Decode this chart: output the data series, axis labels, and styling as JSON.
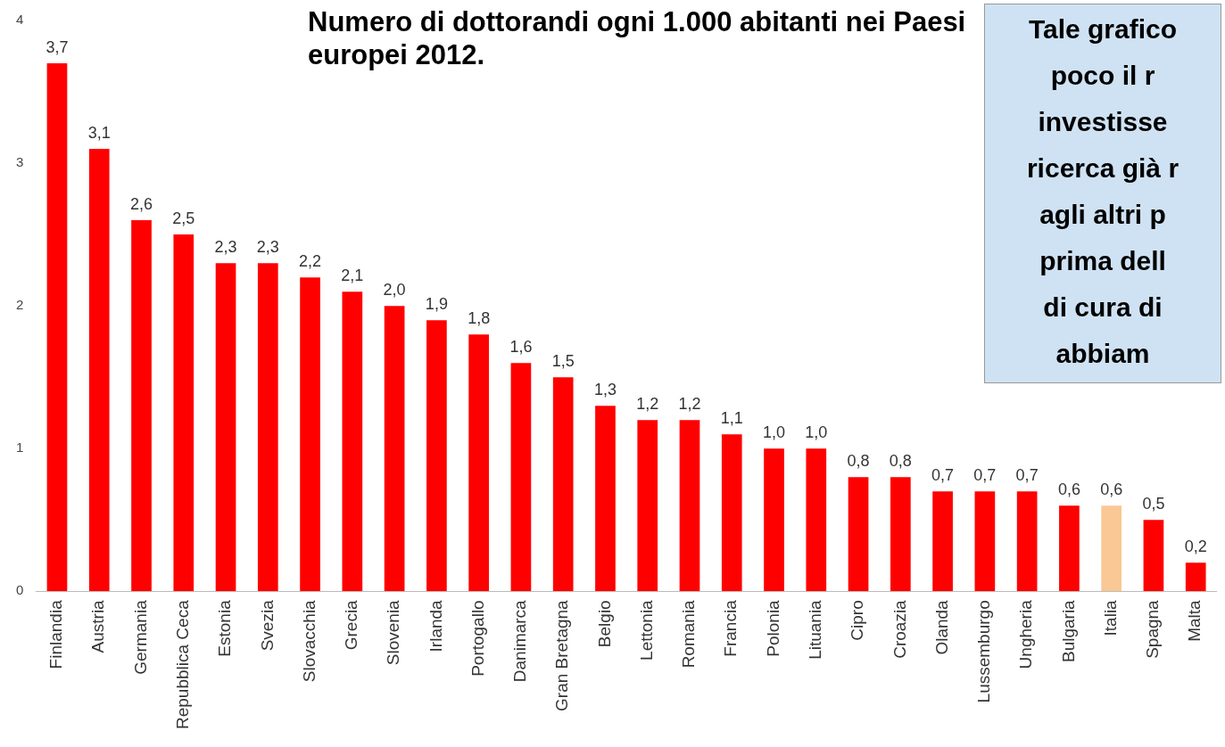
{
  "chart_data": {
    "type": "bar",
    "title": "Numero di dottorandi ogni 1.000 abitanti nei Paesi europei 2012.",
    "categories": [
      "Finlandia",
      "Austria",
      "Germania",
      "Repubblica Ceca",
      "Estonia",
      "Svezia",
      "Slovacchia",
      "Grecia",
      "Slovenia",
      "Irlanda",
      "Portogallo",
      "Danimarca",
      "Gran Bretagna",
      "Belgio",
      "Lettonia",
      "Romania",
      "Francia",
      "Polonia",
      "Lituania",
      "Cipro",
      "Croazia",
      "Olanda",
      "Lussemburgo",
      "Ungheria",
      "Bulgaria",
      "Italia",
      "Spagna",
      "Malta"
    ],
    "values": [
      3.7,
      3.1,
      2.6,
      2.5,
      2.3,
      2.3,
      2.2,
      2.1,
      2.0,
      1.9,
      1.8,
      1.6,
      1.5,
      1.3,
      1.2,
      1.2,
      1.1,
      1.0,
      1.0,
      0.8,
      0.8,
      0.7,
      0.7,
      0.7,
      0.6,
      0.6,
      0.5,
      0.2
    ],
    "value_labels": [
      "3,7",
      "3,1",
      "2,6",
      "2,5",
      "2,3",
      "2,3",
      "2,2",
      "2,1",
      "2,0",
      "1,9",
      "1,8",
      "1,6",
      "1,5",
      "1,3",
      "1,2",
      "1,2",
      "1,1",
      "1,0",
      "1,0",
      "0,8",
      "0,8",
      "0,7",
      "0,7",
      "0,7",
      "0,6",
      "0,6",
      "0,5",
      "0,2"
    ],
    "colors": [
      "#ff0000",
      "#ff0000",
      "#ff0000",
      "#ff0000",
      "#ff0000",
      "#ff0000",
      "#ff0000",
      "#ff0000",
      "#ff0000",
      "#ff0000",
      "#ff0000",
      "#ff0000",
      "#ff0000",
      "#ff0000",
      "#ff0000",
      "#ff0000",
      "#ff0000",
      "#ff0000",
      "#ff0000",
      "#ff0000",
      "#ff0000",
      "#ff0000",
      "#ff0000",
      "#ff0000",
      "#ff0000",
      "#f9c894",
      "#ff0000",
      "#ff0000"
    ],
    "ylim": [
      0,
      4
    ],
    "yticks": [
      0,
      1,
      2,
      3,
      4
    ],
    "grid": false,
    "annotations": [
      "Tale grafico",
      "poco il r",
      "investisse",
      "ricerca già r",
      "agli altri p",
      "prima dell",
      "di cura di",
      "abbiam"
    ]
  }
}
